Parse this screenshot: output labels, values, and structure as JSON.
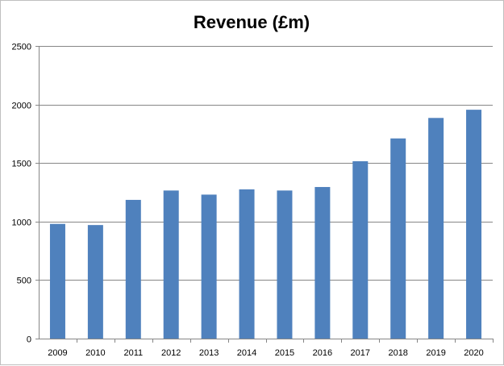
{
  "chart_data": {
    "type": "bar",
    "title": "Revenue (£m)",
    "xlabel": "",
    "ylabel": "",
    "categories": [
      "2009",
      "2010",
      "2011",
      "2012",
      "2013",
      "2014",
      "2015",
      "2016",
      "2017",
      "2018",
      "2019",
      "2020"
    ],
    "series": [
      {
        "values": [
          980,
          970,
          1185,
          1265,
          1230,
          1275,
          1265,
          1295,
          1515,
          1710,
          1885,
          1955
        ]
      }
    ],
    "ylim": [
      0,
      2500
    ],
    "yticks": [
      0,
      500,
      1000,
      1500,
      2000,
      2500
    ],
    "grid": true,
    "legend": "none",
    "colors": {
      "bar": "#4f81bd",
      "grid": "#868686",
      "axis": "#868686"
    }
  }
}
